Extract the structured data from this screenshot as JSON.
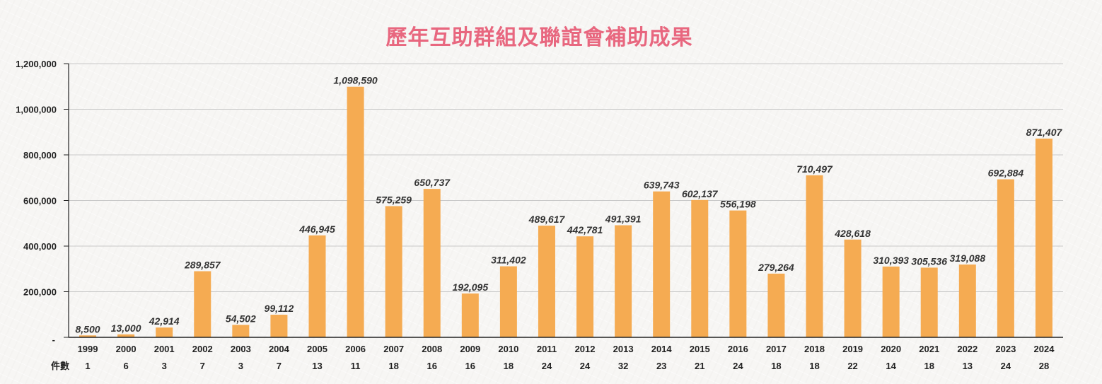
{
  "chart_data": {
    "type": "bar",
    "title": "歷年互助群組及聯誼會補助成果",
    "xlabel": "",
    "ylabel": "",
    "ylim": [
      0,
      1200000
    ],
    "yticks": [
      0,
      200000,
      400000,
      600000,
      800000,
      1000000,
      1200000
    ],
    "ytick_labels": [
      "-",
      "200,000",
      "400,000",
      "600,000",
      "800,000",
      "1,000,000",
      "1,200,000"
    ],
    "grid": true,
    "bar_color": "#f5ab52",
    "categories": [
      "1999",
      "2000",
      "2001",
      "2002",
      "2003",
      "2004",
      "2005",
      "2006",
      "2007",
      "2008",
      "2009",
      "2010",
      "2011",
      "2012",
      "2013",
      "2014",
      "2015",
      "2016",
      "2017",
      "2018",
      "2019",
      "2020",
      "2021",
      "2022",
      "2023",
      "2024"
    ],
    "values": [
      8500,
      13000,
      42914,
      289857,
      54502,
      99112,
      446945,
      1098590,
      575259,
      650737,
      192095,
      311402,
      489617,
      442781,
      491391,
      639743,
      602137,
      556198,
      279264,
      710497,
      428618,
      310393,
      305536,
      319088,
      692884,
      871407
    ],
    "value_labels": [
      "8,500",
      "13,000",
      "42,914",
      "289,857",
      "54,502",
      "99,112",
      "446,945",
      "1,098,590",
      "575,259",
      "650,737",
      "192,095",
      "311,402",
      "489,617",
      "442,781",
      "491,391",
      "639,743",
      "602,137",
      "556,198",
      "279,264",
      "710,497",
      "428,618",
      "310,393",
      "305,536",
      "319,088",
      "692,884",
      "871,407"
    ],
    "count_row_label": "件數",
    "counts": [
      1,
      6,
      3,
      7,
      3,
      7,
      13,
      11,
      18,
      16,
      16,
      18,
      24,
      24,
      32,
      23,
      21,
      24,
      18,
      18,
      22,
      14,
      18,
      13,
      24,
      28
    ]
  }
}
